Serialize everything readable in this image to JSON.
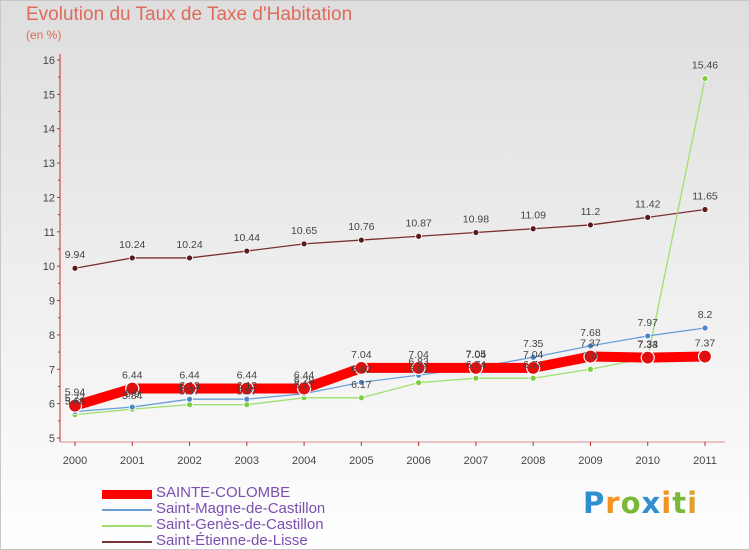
{
  "title": "Evolution du Taux de Taxe d'Habitation",
  "subtitle": "(en %)",
  "logo": [
    "P",
    "r",
    "o",
    "x",
    "i",
    "t",
    "i"
  ],
  "logo_colors": [
    "#2f8fd0",
    "#f29422",
    "#7bb83a",
    "#2f8fd0",
    "#f29422",
    "#7bb83a",
    "#e0a030"
  ],
  "chart_data": {
    "type": "line",
    "x": [
      "2000",
      "2001",
      "2002",
      "2003",
      "2004",
      "2005",
      "2006",
      "2007",
      "2008",
      "2009",
      "2010",
      "2011"
    ],
    "ylim": [
      5,
      16
    ],
    "yticks": [
      "5",
      "6",
      "7",
      "8",
      "9",
      "10",
      "11",
      "12",
      "13",
      "14",
      "15",
      "16"
    ],
    "grid": false,
    "legend_placement": "bottom-left",
    "series": [
      {
        "name": "SAINTE-COLOMBE",
        "color": "#ff0000",
        "point_color": "#e01010",
        "values": [
          5.94,
          6.44,
          6.44,
          6.44,
          6.44,
          7.04,
          7.04,
          7.04,
          7.04,
          7.37,
          7.34,
          7.37
        ],
        "labels": [
          "5.94",
          "6.44",
          "6.44",
          "6.44",
          "6.44",
          "7.04",
          "7.04",
          "7.04",
          "7.04",
          "7.37",
          "7.34",
          "7.37"
        ]
      },
      {
        "name": "Saint-Magne-de-Castillon",
        "color": "#6aa0d8",
        "point_color": "#4a86cc",
        "values": [
          5.77,
          5.9,
          6.13,
          6.13,
          6.29,
          6.62,
          6.83,
          7.05,
          7.35,
          7.68,
          7.97,
          8.2
        ],
        "labels": [
          "5.77",
          "5.9",
          "6.13",
          "6.13",
          "6.29",
          "6.62",
          "6.83",
          "7.05",
          "7.35",
          "7.68",
          "7.97",
          "8.2"
        ]
      },
      {
        "name": "Saint-Genès-de-Castillon",
        "color": "#a0e070",
        "point_color": "#7ccc40",
        "values": [
          5.68,
          5.84,
          5.97,
          5.97,
          6.17,
          6.17,
          6.61,
          6.74,
          6.74,
          7.0,
          7.33,
          15.46
        ],
        "labels": [
          "5.68",
          "5.84",
          "5.97",
          "5.97",
          "6.17",
          "6.17",
          "6.61",
          "6.74",
          "6.74",
          "7.0",
          "7.33",
          "15.46"
        ]
      },
      {
        "name": "Saint-Étienne-de-Lisse",
        "color": "#7a3030",
        "point_color": "#5a1a1a",
        "values": [
          9.94,
          10.24,
          10.24,
          10.44,
          10.65,
          10.76,
          10.87,
          10.98,
          11.09,
          11.2,
          11.42,
          11.65
        ],
        "labels": [
          "9.94",
          "10.24",
          "10.24",
          "10.44",
          "10.65",
          "10.76",
          "10.87",
          "10.98",
          "11.09",
          "11.2",
          "11.42",
          "11.65"
        ]
      }
    ]
  }
}
